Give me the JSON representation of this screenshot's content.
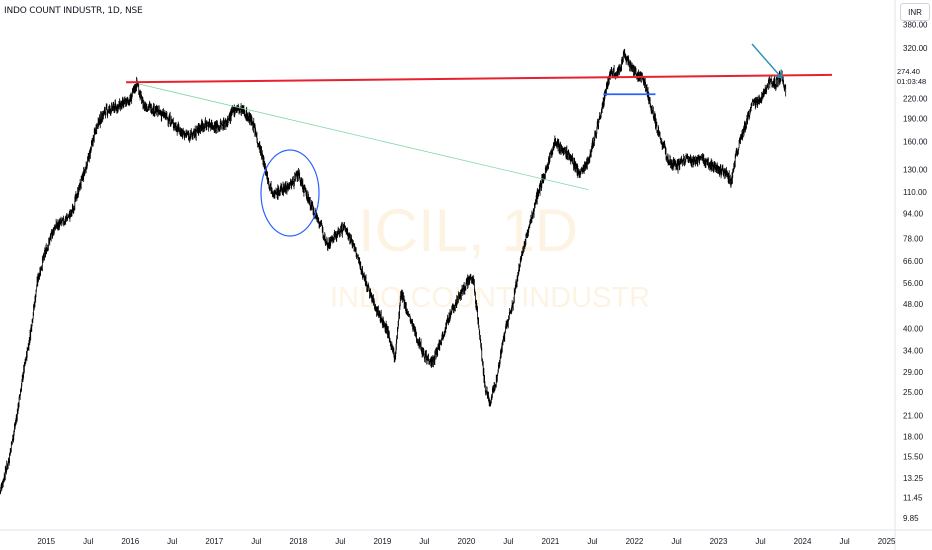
{
  "header": {
    "title": "INDO COUNT INDUSTR, 1D, NSE"
  },
  "currency_button": {
    "label": "INR"
  },
  "watermark": {
    "symbol": "ICIL, 1D",
    "name": "INDO COUNT INDUSTR"
  },
  "last_price": {
    "price": "274.40",
    "countdown": "01:03:48"
  },
  "chart_data": {
    "type": "candlestick",
    "title": "INDO COUNT INDUSTR, 1D, NSE",
    "currency": "INR",
    "y_scale": "log",
    "ylim": [
      9.0,
      430.0
    ],
    "y_ticks": [
      380.0,
      320.0,
      274.4,
      220.0,
      190.0,
      160.0,
      130.0,
      110.0,
      94.0,
      78.0,
      66.0,
      56.0,
      48.0,
      40.0,
      34.0,
      29.0,
      25.0,
      21.0,
      18.0,
      15.5,
      13.25,
      11.45,
      9.85
    ],
    "y_tick_labels": [
      "380.00",
      "320.00",
      "274.40",
      "220.00",
      "190.00",
      "160.00",
      "130.00",
      "110.00",
      "94.00",
      "78.00",
      "66.00",
      "56.00",
      "48.00",
      "40.00",
      "34.00",
      "29.00",
      "25.00",
      "21.00",
      "18.00",
      "15.50",
      "13.25",
      "11.45",
      "9.85"
    ],
    "x_ticks": [
      "2015",
      "Jul",
      "2016",
      "Jul",
      "2017",
      "Jul",
      "2018",
      "Jul",
      "2019",
      "Jul",
      "2020",
      "Jul",
      "2021",
      "Jul",
      "2022",
      "Jul",
      "2023",
      "Jul",
      "2024",
      "Jul",
      "2025"
    ],
    "x_tick_dates": [
      2015.0,
      2015.5,
      2016.0,
      2016.5,
      2017.0,
      2017.5,
      2018.0,
      2018.5,
      2019.0,
      2019.5,
      2020.0,
      2020.5,
      2021.0,
      2021.5,
      2022.0,
      2022.5,
      2023.0,
      2023.5,
      2024.0,
      2024.5,
      2025.0
    ],
    "xlim": [
      2014.45,
      2025.1
    ],
    "price_path": [
      [
        2014.45,
        12.0
      ],
      [
        2014.55,
        15.0
      ],
      [
        2014.65,
        21.0
      ],
      [
        2014.72,
        28.0
      ],
      [
        2014.8,
        37.0
      ],
      [
        2014.9,
        58.0
      ],
      [
        2015.0,
        72.0
      ],
      [
        2015.1,
        85.0
      ],
      [
        2015.2,
        88.0
      ],
      [
        2015.3,
        94.0
      ],
      [
        2015.4,
        115.0
      ],
      [
        2015.5,
        140.0
      ],
      [
        2015.6,
        180.0
      ],
      [
        2015.7,
        200.0
      ],
      [
        2015.8,
        205.0
      ],
      [
        2015.9,
        210.0
      ],
      [
        2016.0,
        218.0
      ],
      [
        2016.08,
        248.0
      ],
      [
        2016.15,
        210.0
      ],
      [
        2016.25,
        205.0
      ],
      [
        2016.35,
        198.0
      ],
      [
        2016.45,
        190.0
      ],
      [
        2016.55,
        178.0
      ],
      [
        2016.65,
        168.0
      ],
      [
        2016.75,
        168.0
      ],
      [
        2016.85,
        180.0
      ],
      [
        2016.95,
        182.0
      ],
      [
        2017.05,
        178.0
      ],
      [
        2017.15,
        185.0
      ],
      [
        2017.25,
        205.0
      ],
      [
        2017.35,
        200.0
      ],
      [
        2017.45,
        185.0
      ],
      [
        2017.55,
        150.0
      ],
      [
        2017.65,
        118.0
      ],
      [
        2017.72,
        108.0
      ],
      [
        2017.8,
        112.0
      ],
      [
        2017.9,
        116.0
      ],
      [
        2018.0,
        125.0
      ],
      [
        2018.05,
        115.0
      ],
      [
        2018.15,
        100.0
      ],
      [
        2018.25,
        88.0
      ],
      [
        2018.35,
        75.0
      ],
      [
        2018.45,
        80.0
      ],
      [
        2018.55,
        85.0
      ],
      [
        2018.65,
        75.0
      ],
      [
        2018.75,
        62.0
      ],
      [
        2018.85,
        52.0
      ],
      [
        2018.95,
        45.0
      ],
      [
        2019.05,
        40.0
      ],
      [
        2019.15,
        32.0
      ],
      [
        2019.22,
        52.0
      ],
      [
        2019.3,
        45.0
      ],
      [
        2019.4,
        38.0
      ],
      [
        2019.5,
        33.0
      ],
      [
        2019.6,
        31.0
      ],
      [
        2019.7,
        37.0
      ],
      [
        2019.8,
        44.0
      ],
      [
        2019.9,
        50.0
      ],
      [
        2020.0,
        56.0
      ],
      [
        2020.08,
        58.0
      ],
      [
        2020.15,
        40.0
      ],
      [
        2020.22,
        26.0
      ],
      [
        2020.28,
        23.0
      ],
      [
        2020.35,
        27.0
      ],
      [
        2020.45,
        38.0
      ],
      [
        2020.55,
        48.0
      ],
      [
        2020.65,
        68.0
      ],
      [
        2020.75,
        85.0
      ],
      [
        2020.85,
        110.0
      ],
      [
        2020.95,
        130.0
      ],
      [
        2021.05,
        160.0
      ],
      [
        2021.15,
        150.0
      ],
      [
        2021.25,
        140.0
      ],
      [
        2021.35,
        125.0
      ],
      [
        2021.45,
        140.0
      ],
      [
        2021.55,
        175.0
      ],
      [
        2021.65,
        225.0
      ],
      [
        2021.72,
        270.0
      ],
      [
        2021.8,
        265.0
      ],
      [
        2021.88,
        305.0
      ],
      [
        2021.95,
        280.0
      ],
      [
        2022.05,
        260.0
      ],
      [
        2022.12,
        250.0
      ],
      [
        2022.2,
        205.0
      ],
      [
        2022.3,
        165.0
      ],
      [
        2022.4,
        140.0
      ],
      [
        2022.5,
        133.0
      ],
      [
        2022.6,
        140.0
      ],
      [
        2022.7,
        138.0
      ],
      [
        2022.8,
        140.0
      ],
      [
        2022.9,
        135.0
      ],
      [
        2023.0,
        130.0
      ],
      [
        2023.08,
        128.0
      ],
      [
        2023.15,
        118.0
      ],
      [
        2023.2,
        142.0
      ],
      [
        2023.3,
        175.0
      ],
      [
        2023.4,
        210.0
      ],
      [
        2023.5,
        220.0
      ],
      [
        2023.6,
        250.0
      ],
      [
        2023.68,
        245.0
      ],
      [
        2023.75,
        262.0
      ],
      [
        2023.8,
        230.0
      ]
    ]
  },
  "annotations": {
    "resistance_line": {
      "color": "#e8212e"
    },
    "trend_line": {
      "color": "#7ed9a7"
    },
    "support_line": {
      "color": "#2962ff"
    },
    "circle": {
      "color": "#2962ff"
    },
    "arrow": {
      "color": "#2a8fb8"
    }
  }
}
